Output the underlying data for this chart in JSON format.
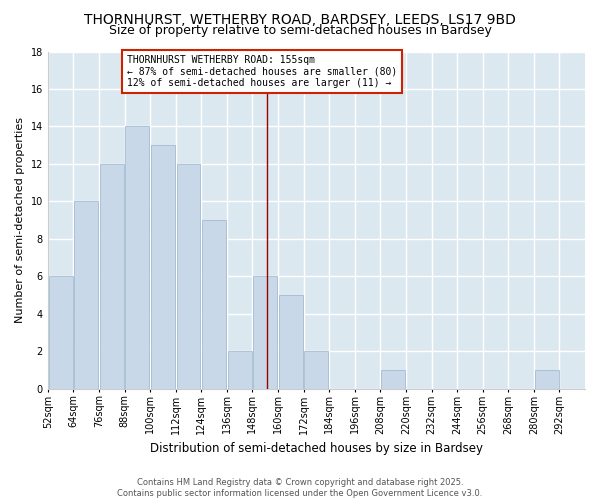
{
  "title": "THORNHURST, WETHERBY ROAD, BARDSEY, LEEDS, LS17 9BD",
  "subtitle": "Size of property relative to semi-detached houses in Bardsey",
  "xlabel": "Distribution of semi-detached houses by size in Bardsey",
  "ylabel": "Number of semi-detached properties",
  "footer_line1": "Contains HM Land Registry data © Crown copyright and database right 2025.",
  "footer_line2": "Contains public sector information licensed under the Open Government Licence v3.0.",
  "annotation_line1": "THORNHURST WETHERBY ROAD: 155sqm",
  "annotation_line2": "← 87% of semi-detached houses are smaller (80)",
  "annotation_line3": "12% of semi-detached houses are larger (11) →",
  "bar_color": "#c8d8e8",
  "bar_edge_color": "#9ab4cc",
  "vline_color": "#990000",
  "vline_x": 155,
  "categories": [
    "52sqm",
    "64sqm",
    "76sqm",
    "88sqm",
    "100sqm",
    "112sqm",
    "124sqm",
    "136sqm",
    "148sqm",
    "160sqm",
    "172sqm",
    "184sqm",
    "196sqm",
    "208sqm",
    "220sqm",
    "232sqm",
    "244sqm",
    "256sqm",
    "268sqm",
    "280sqm",
    "292sqm"
  ],
  "bin_edges": [
    52,
    64,
    76,
    88,
    100,
    112,
    124,
    136,
    148,
    160,
    172,
    184,
    196,
    208,
    220,
    232,
    244,
    256,
    268,
    280,
    292
  ],
  "values": [
    6,
    10,
    12,
    14,
    13,
    12,
    9,
    2,
    6,
    5,
    2,
    0,
    0,
    1,
    0,
    0,
    0,
    0,
    0,
    1,
    0
  ],
  "ylim": [
    0,
    18
  ],
  "yticks": [
    0,
    2,
    4,
    6,
    8,
    10,
    12,
    14,
    16,
    18
  ],
  "fig_bg": "#ffffff",
  "plot_bg": "#dce8f0",
  "title_fontsize": 10,
  "subtitle_fontsize": 9,
  "ylabel_fontsize": 8,
  "xlabel_fontsize": 8.5,
  "tick_fontsize": 7,
  "footer_fontsize": 6,
  "ann_fontsize": 7
}
